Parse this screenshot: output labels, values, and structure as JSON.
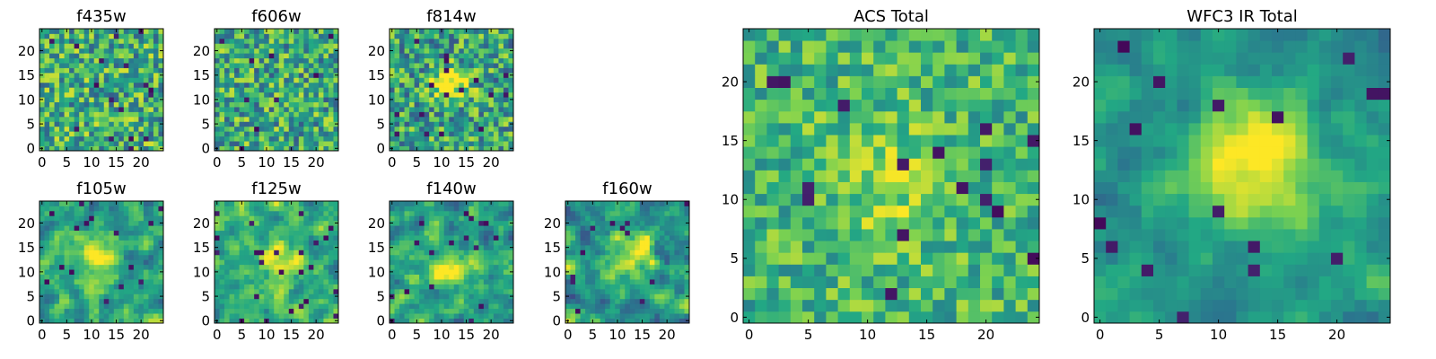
{
  "chart_data": {
    "type": "heatmap",
    "colormap": "viridis",
    "colormap_stops": [
      "#440154",
      "#414487",
      "#2a788e",
      "#22a884",
      "#7ad151",
      "#fde725"
    ],
    "grid_size": [
      25,
      25
    ],
    "value_range": [
      0,
      1
    ],
    "panels": [
      {
        "title": "f435w",
        "xticks": [
          "0",
          "5",
          "10",
          "15",
          "20"
        ],
        "yticks": [
          "0",
          "5",
          "10",
          "15",
          "20"
        ],
        "xlim": [
          -0.5,
          24.5
        ],
        "ylim": [
          -0.5,
          24.5
        ],
        "content": "noise-dominated cutout, no visible source"
      },
      {
        "title": "f606w",
        "xticks": [
          "0",
          "5",
          "10",
          "15",
          "20"
        ],
        "yticks": [
          "0",
          "5",
          "10",
          "15",
          "20"
        ],
        "xlim": [
          -0.5,
          24.5
        ],
        "ylim": [
          -0.5,
          24.5
        ],
        "content": "noise-dominated cutout, no visible source"
      },
      {
        "title": "f814w",
        "xticks": [
          "0",
          "5",
          "10",
          "15",
          "20"
        ],
        "yticks": [
          "0",
          "5",
          "10",
          "15",
          "20"
        ],
        "xlim": [
          -0.5,
          24.5
        ],
        "ylim": [
          -0.5,
          24.5
        ],
        "content": "faint bright source near (12, 13)"
      },
      {
        "title": "f105w",
        "xticks": [
          "0",
          "5",
          "10",
          "15",
          "20"
        ],
        "yticks": [
          "0",
          "5",
          "10",
          "15",
          "20"
        ],
        "xlim": [
          -0.5,
          24.5
        ],
        "ylim": [
          -0.5,
          24.5
        ],
        "content": "bright source near (12, 13)"
      },
      {
        "title": "f125w",
        "xticks": [
          "0",
          "5",
          "10",
          "15",
          "20"
        ],
        "yticks": [
          "0",
          "5",
          "10",
          "15",
          "20"
        ],
        "xlim": [
          -0.5,
          24.5
        ],
        "ylim": [
          -0.5,
          24.5
        ],
        "content": "bright source near (12, 12)"
      },
      {
        "title": "f140w",
        "xticks": [
          "0",
          "5",
          "10",
          "15",
          "20"
        ],
        "yticks": [
          "0",
          "5",
          "10",
          "15",
          "20"
        ],
        "xlim": [
          -0.5,
          24.5
        ],
        "ylim": [
          -0.5,
          24.5
        ],
        "content": "bright source near (11, 11)"
      },
      {
        "title": "f160w",
        "xticks": [
          "0",
          "5",
          "10",
          "15",
          "20"
        ],
        "yticks": [
          "0",
          "5",
          "10",
          "15",
          "20"
        ],
        "xlim": [
          -0.5,
          24.5
        ],
        "ylim": [
          -0.5,
          24.5
        ],
        "content": "bright source near (13, 13)"
      },
      {
        "title": "ACS Total",
        "xticks": [
          "0",
          "5",
          "10",
          "15",
          "20"
        ],
        "yticks": [
          "0",
          "5",
          "10",
          "15",
          "20"
        ],
        "xlim": [
          -0.5,
          24.5
        ],
        "ylim": [
          -0.5,
          24.5
        ],
        "content": "noisy summed ACS image, mostly green-yellow"
      },
      {
        "title": "WFC3 IR Total",
        "xticks": [
          "0",
          "5",
          "10",
          "15",
          "20"
        ],
        "yticks": [
          "0",
          "5",
          "10",
          "15",
          "20"
        ],
        "xlim": [
          -0.5,
          24.5
        ],
        "ylim": [
          -0.5,
          24.5
        ],
        "content": "summed IR image with bright source centred near (13, 13)"
      }
    ]
  }
}
